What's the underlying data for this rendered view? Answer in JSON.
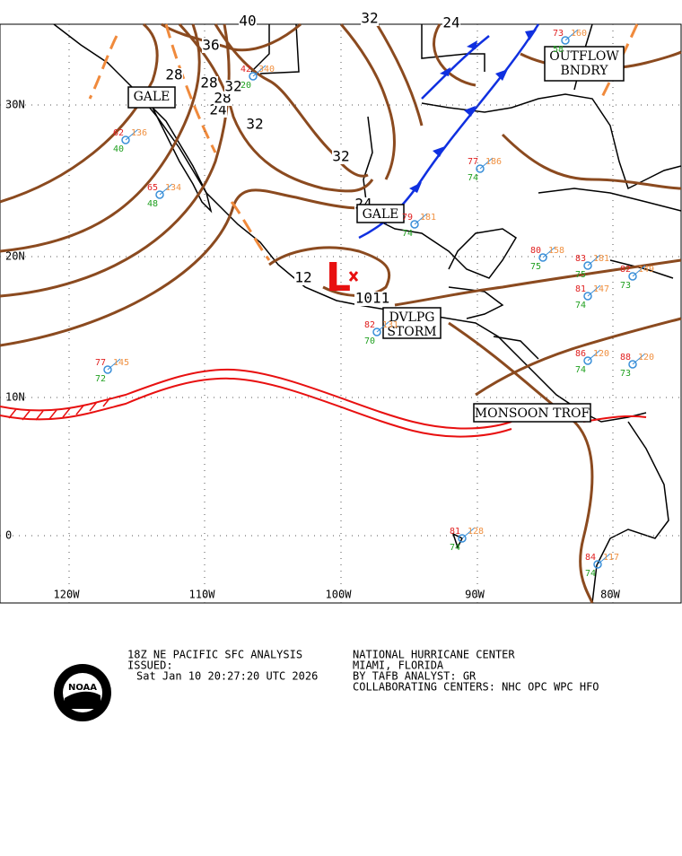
{
  "map": {
    "lat_labels": [
      "30N",
      "20N",
      "10N",
      "0"
    ],
    "lon_labels": [
      "120W",
      "110W",
      "100W",
      "90W",
      "80W"
    ],
    "isobar_labels": [
      40,
      36,
      32,
      28,
      28,
      24,
      28,
      32,
      32,
      32,
      24,
      24,
      12,
      1011
    ],
    "low_label": "L",
    "boxes": [
      [
        "GALE"
      ],
      [
        "GALE"
      ],
      [
        "OUTFLOW",
        "BNDRY"
      ],
      [
        "DVLPG",
        "STORM"
      ],
      [
        "MONSOON TROF"
      ]
    ],
    "stations": [
      {
        "temp": 77,
        "dew": 72,
        "pres": "145"
      },
      {
        "temp": 77,
        "dew": 74,
        "pres": "186"
      },
      {
        "temp": 79,
        "dew": 74,
        "pres": "181"
      },
      {
        "temp": 80,
        "dew": 75,
        "pres": "158"
      },
      {
        "temp": 83,
        "dew": 75,
        "pres": "181"
      },
      {
        "temp": 82,
        "dew": 70,
        "pres": "131"
      },
      {
        "temp": 81,
        "dew": 74,
        "pres": "147"
      },
      {
        "temp": 86,
        "dew": 74,
        "pres": "120"
      },
      {
        "temp": 88,
        "dew": 73,
        "pres": "120"
      },
      {
        "temp": 81,
        "dew": 74,
        "pres": "128"
      },
      {
        "temp": 84,
        "dew": 74,
        "pres": "117"
      },
      {
        "temp": 65,
        "dew": 48,
        "pres": "134"
      },
      {
        "temp": 62,
        "dew": 40,
        "pres": "136"
      },
      {
        "temp": 73,
        "dew": 58,
        "pres": "160"
      },
      {
        "temp": 42,
        "dew": 20,
        "pres": "340"
      },
      {
        "temp": 82,
        "dew": 73,
        "pres": "149"
      }
    ]
  },
  "footer": {
    "left": [
      "18Z NE PACIFIC SFC ANALYSIS",
      "ISSUED:",
      "Sat Jan 10 20:27:20 UTC 2026"
    ],
    "right": [
      "NATIONAL HURRICANE CENTER",
      "MIAMI, FLORIDA",
      "BY TAFB ANALYST: GR",
      "COLLABORATING CENTERS: NHC OPC WPC HFO"
    ]
  },
  "logo": "NOAA"
}
